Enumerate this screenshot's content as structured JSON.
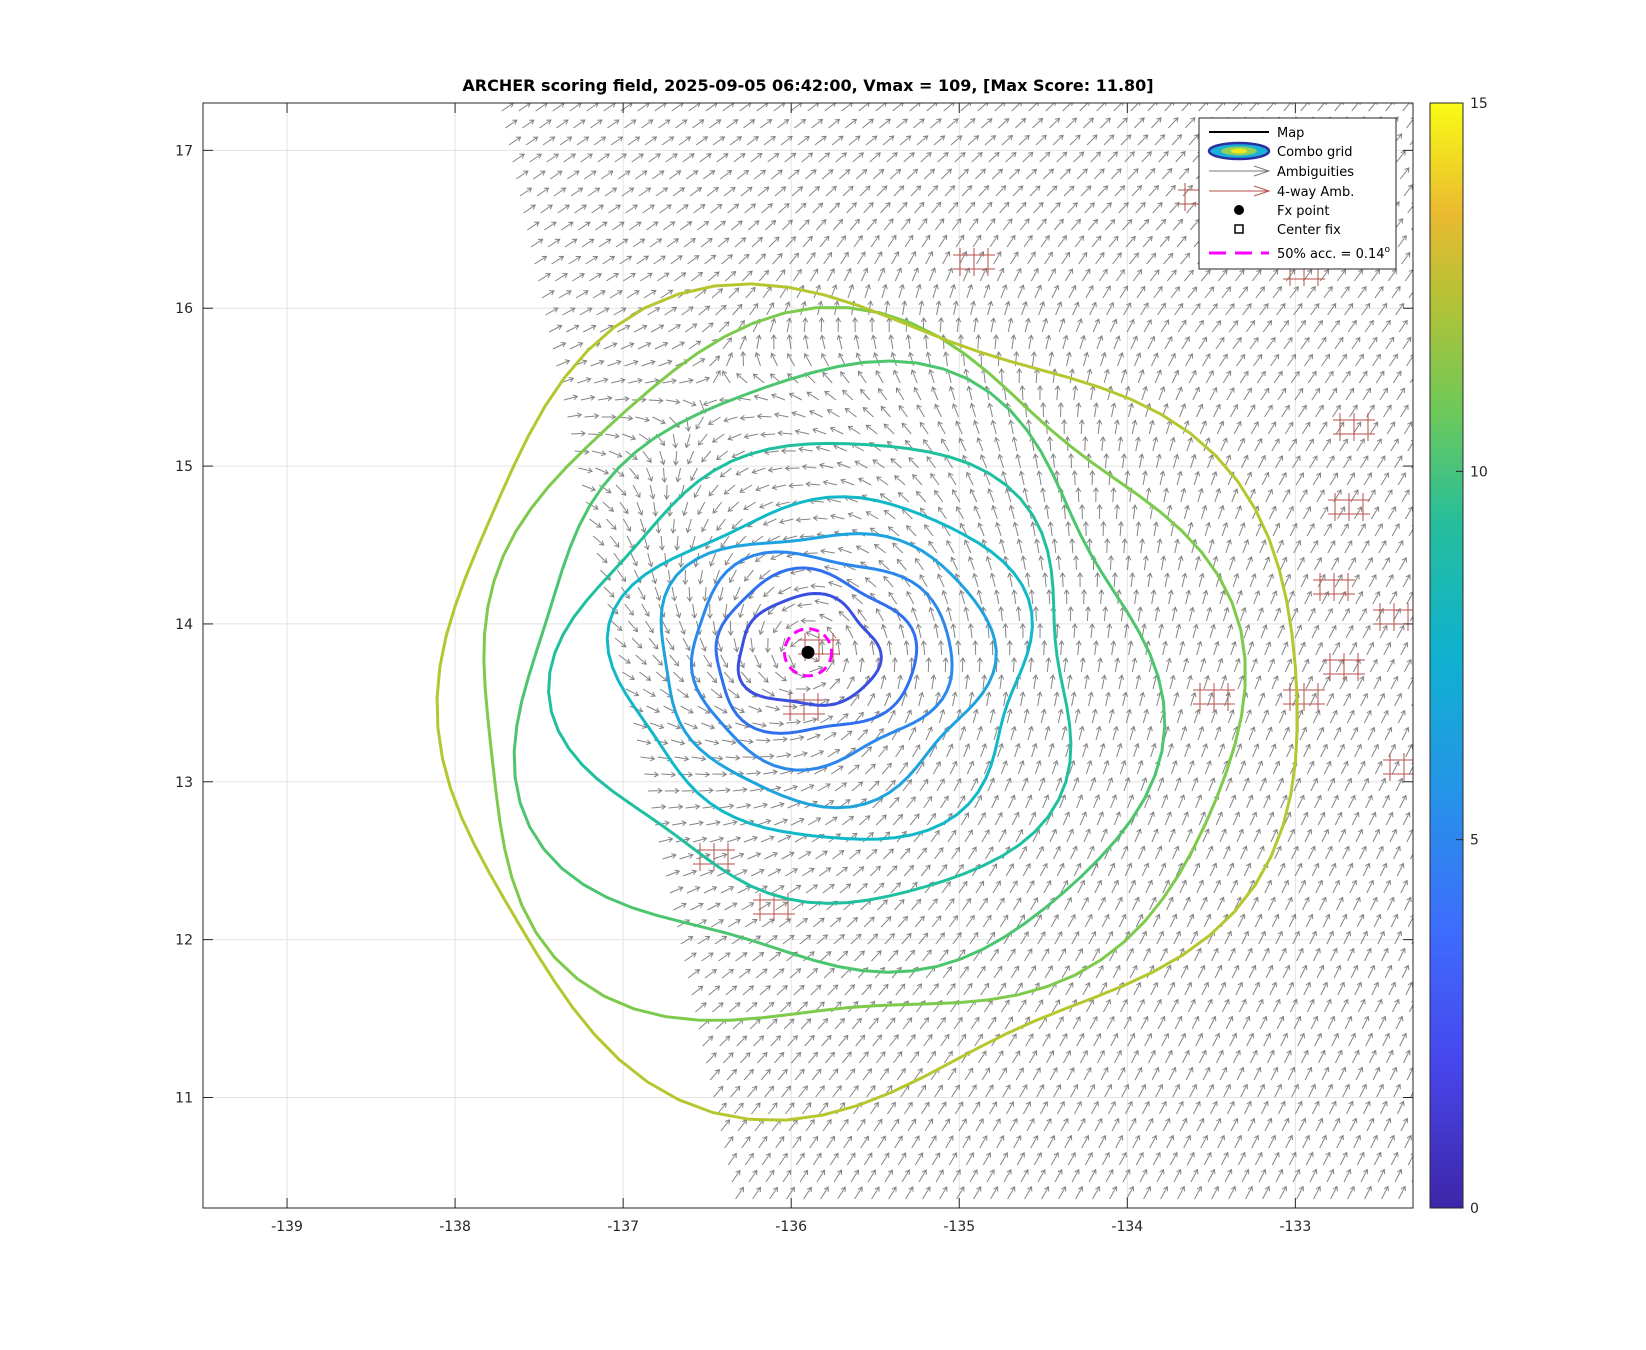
{
  "chart_data": {
    "type": "map-vector-contour",
    "title": "ARCHER scoring field, 2025-09-05 06:42:00, Vmax = 109, [Max Score: 11.80]",
    "xlim": [
      -139.5,
      -132.3
    ],
    "ylim": [
      10.3,
      17.3
    ],
    "x_ticks": [
      -139,
      -138,
      -137,
      -136,
      -135,
      -134,
      -133
    ],
    "y_ticks": [
      11,
      12,
      13,
      14,
      15,
      16,
      17
    ],
    "grid": true,
    "center": {
      "lon": -135.9,
      "lat": 13.82
    },
    "accuracy_radius_deg": 0.14,
    "colorbar": {
      "min": 0,
      "max": 15,
      "ticks": [
        0,
        5,
        10,
        15
      ]
    },
    "contour_levels": [
      {
        "value": 2.8,
        "color": "#3a4fe0"
      },
      {
        "value": 4.2,
        "color": "#2f6ff0"
      },
      {
        "value": 5.0,
        "color": "#2a88ec"
      },
      {
        "value": 6.0,
        "color": "#1ea3de"
      },
      {
        "value": 7.0,
        "color": "#10b8c8"
      },
      {
        "value": 8.0,
        "color": "#1fc09f"
      },
      {
        "value": 9.0,
        "color": "#4cc56e"
      },
      {
        "value": 10.0,
        "color": "#7dca4c"
      },
      {
        "value": 11.0,
        "color": "#b6c62f"
      }
    ],
    "legend": {
      "position": "top-right",
      "entries": [
        {
          "label": "Map",
          "symbol": "line"
        },
        {
          "label": "Combo grid",
          "symbol": "ellipse"
        },
        {
          "label": "Ambiguities",
          "symbol": "gray-arrow"
        },
        {
          "label": "4-way Amb.",
          "symbol": "red-arrow"
        },
        {
          "label": "Fx point",
          "symbol": "filled-dot"
        },
        {
          "label": "Center fix",
          "symbol": "open-square"
        },
        {
          "label": "50% acc. = 0.14",
          "superscript": "o",
          "symbol": "magenta-dash"
        }
      ]
    },
    "colors": {
      "ambiguity_arrow": "#6e6e6e",
      "four_way_arrow": "#b5524a",
      "accuracy_circle": "#ff00ff",
      "grid": "#e3e3e3"
    }
  }
}
